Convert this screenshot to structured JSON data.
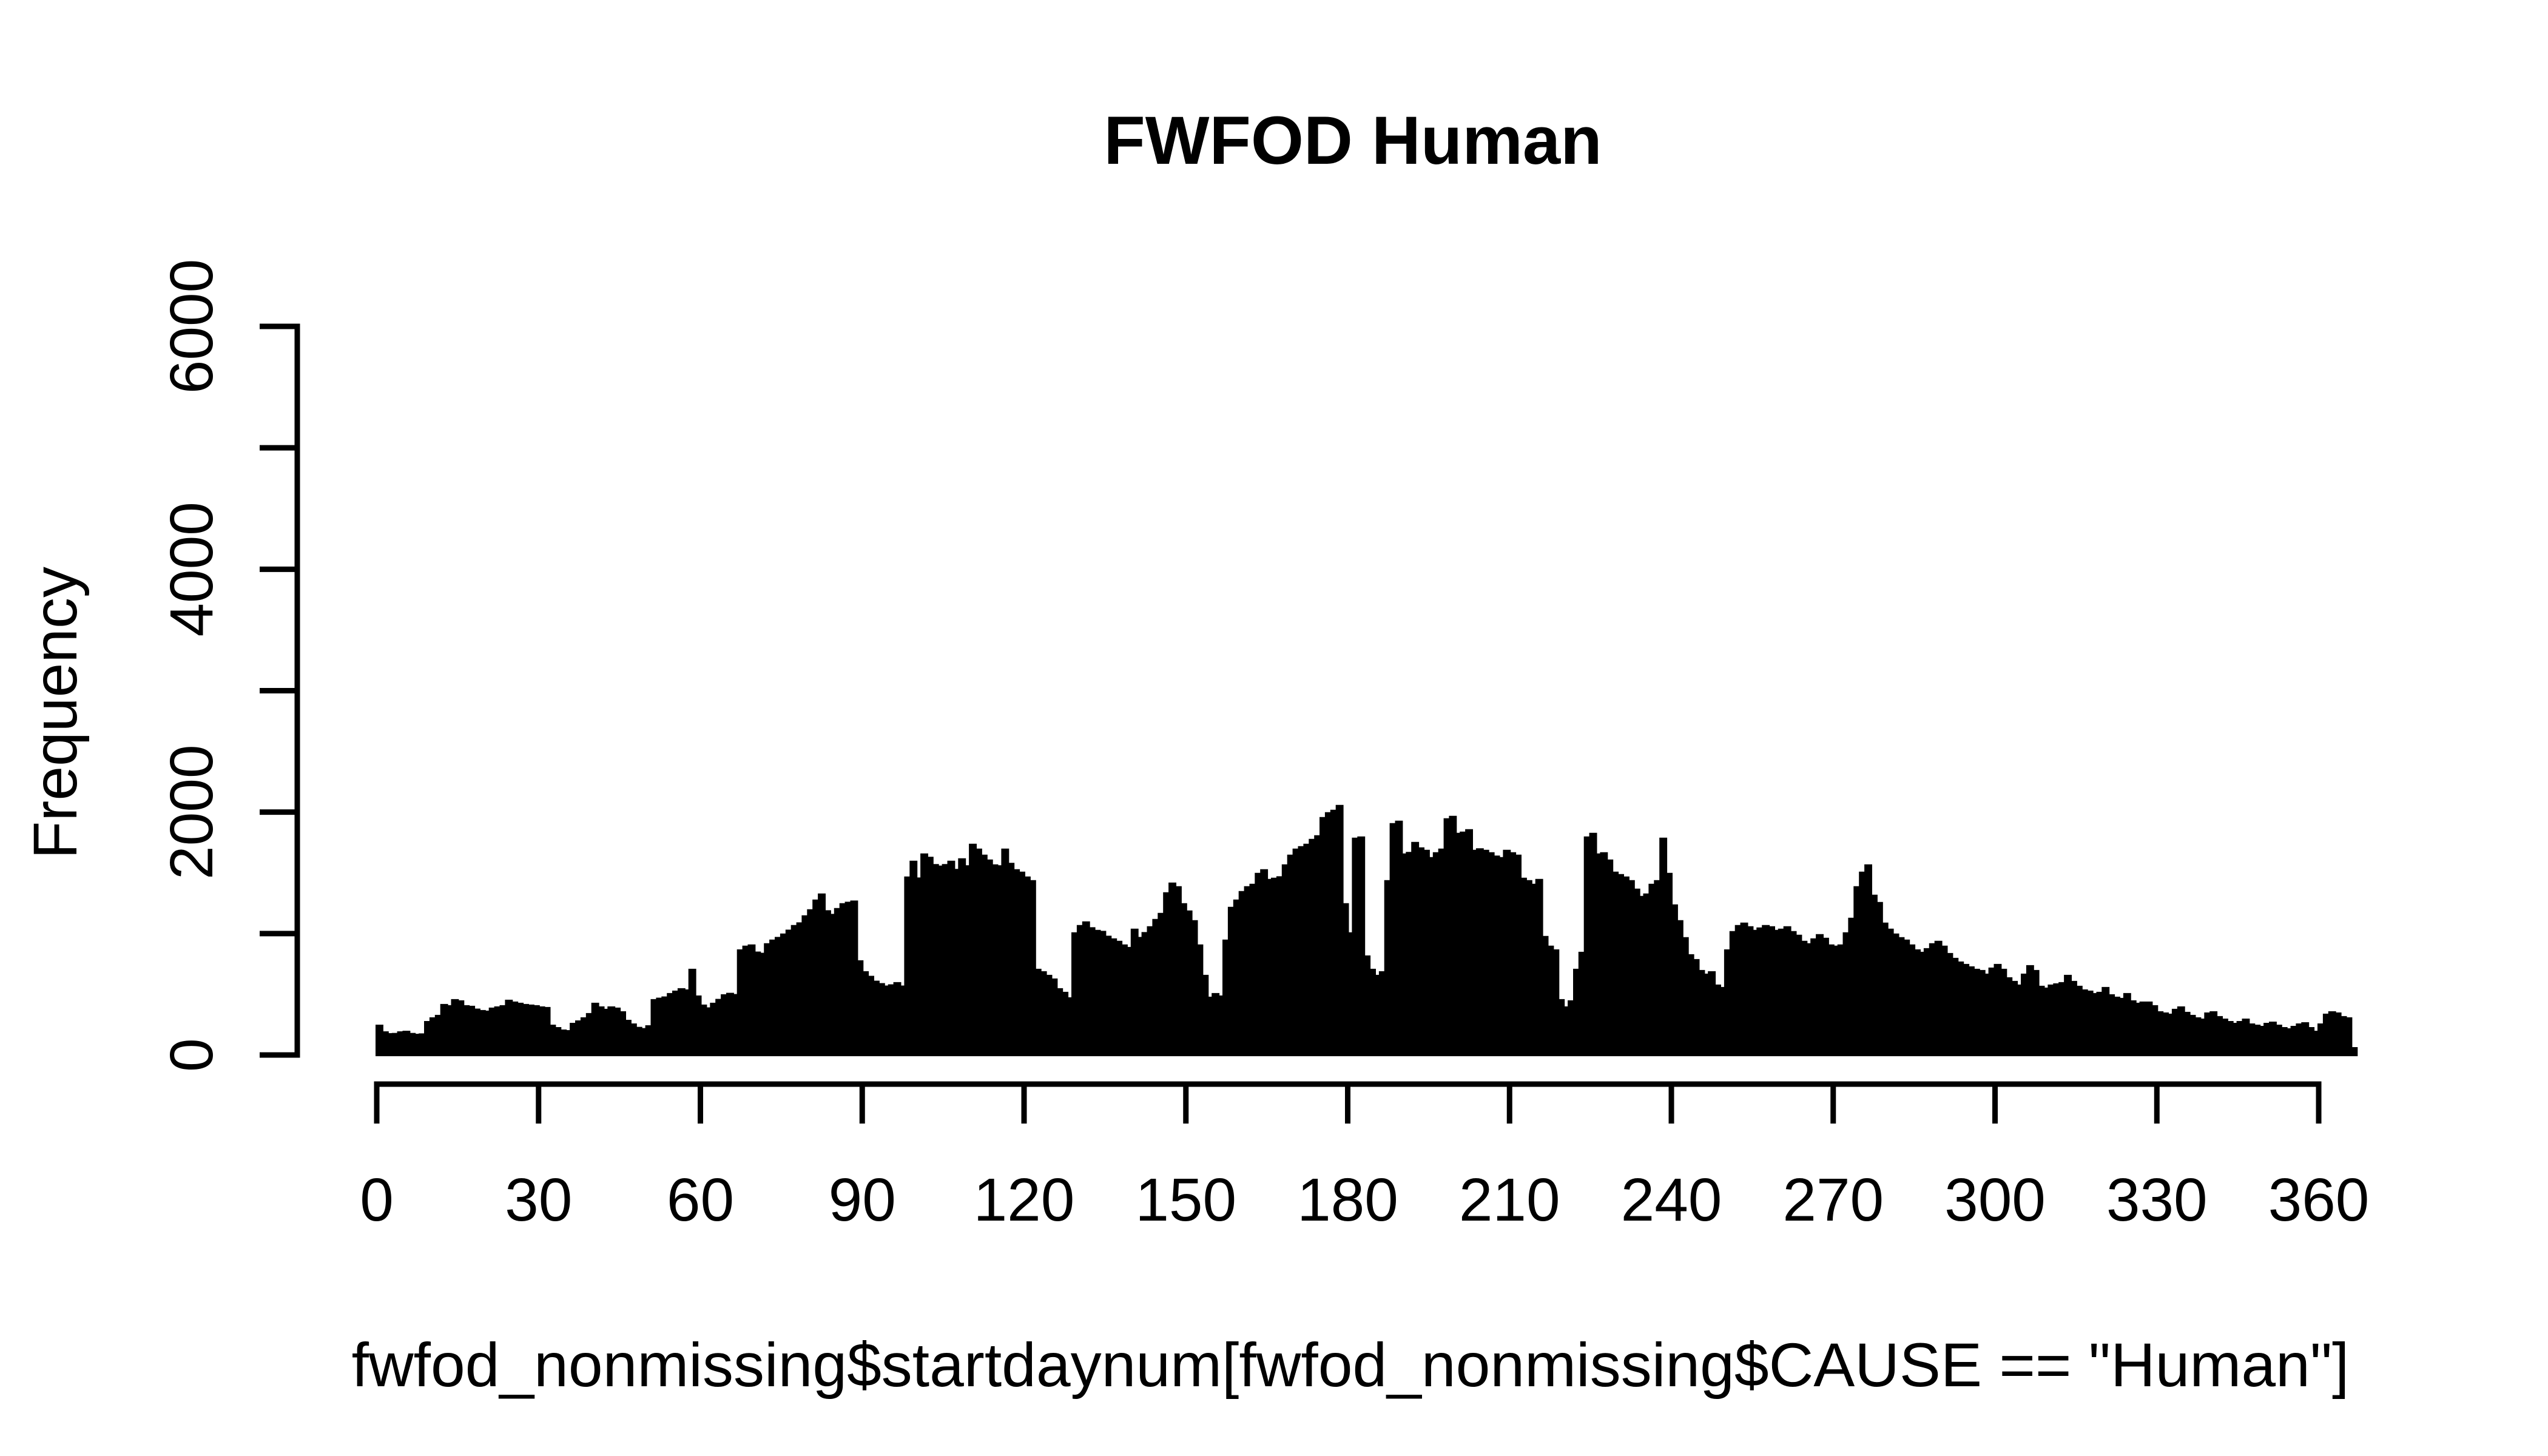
{
  "chart_data": {
    "type": "bar",
    "subtype": "histogram",
    "title": "FWFOD Human",
    "xlabel": "fwfod_nonmissing$startdaynum[fwfod_nonmissing$CAUSE == \"Human\"]",
    "ylabel": "Frequency",
    "xlim": [
      0,
      367
    ],
    "ylim": [
      0,
      6000
    ],
    "x_ticks": [
      0,
      30,
      60,
      90,
      120,
      150,
      180,
      210,
      240,
      270,
      300,
      330,
      360
    ],
    "y_ticks_minor_step": 1000,
    "y_ticks_labeled": [
      0,
      2000,
      4000,
      6000
    ],
    "grid": false,
    "legend": null,
    "bin_width": 1,
    "x_start": 0,
    "bar_color": "#000000",
    "background_color": "#ffffff",
    "values": [
      240,
      185,
      170,
      172,
      185,
      190,
      172,
      165,
      168,
      270,
      300,
      320,
      410,
      400,
      450,
      440,
      400,
      395,
      372,
      360,
      355,
      380,
      390,
      400,
      445,
      430,
      420,
      410,
      405,
      400,
      390,
      385,
      240,
      220,
      200,
      195,
      255,
      275,
      300,
      335,
      420,
      390,
      370,
      390,
      380,
      350,
      280,
      250,
      222,
      212,
      235,
      450,
      462,
      472,
      500,
      520,
      540,
      530,
      700,
      480,
      405,
      382,
      420,
      452,
      490,
      502,
      492,
      860,
      890,
      900,
      842,
      832,
      910,
      940,
      962,
      990,
      1022,
      1060,
      1082,
      1140,
      1190,
      1270,
      1320,
      1182,
      1152,
      1200,
      1240,
      1252,
      1262,
      770,
      680,
      642,
      602,
      582,
      562,
      572,
      590,
      562,
      1460,
      1590,
      1452,
      1650,
      1622,
      1562,
      1550,
      1562,
      1590,
      1522,
      1610,
      1552,
      1730,
      1690,
      1640,
      1600,
      1560,
      1552,
      1690,
      1572,
      1520,
      1500,
      1460,
      1430,
      700,
      680,
      650,
      620,
      540,
      510,
      465,
      1000,
      1060,
      1090,
      1042,
      1020,
      1012,
      972,
      950,
      930,
      900,
      880,
      1030,
      962,
      1002,
      1050,
      1110,
      1160,
      1330,
      1410,
      1380,
      1240,
      1180,
      1100,
      900,
      650,
      470,
      500,
      480,
      940,
      1210,
      1270,
      1340,
      1380,
      1400,
      1490,
      1520,
      1440,
      1450,
      1462,
      1560,
      1640,
      1690,
      1710,
      1730,
      1770,
      1800,
      1950,
      1990,
      2010,
      2050,
      1240,
      1000,
      1780,
      1790,
      810,
      700,
      650,
      680,
      1430,
      1900,
      1920,
      1650,
      1662,
      1745,
      1700,
      1680,
      1620,
      1660,
      1690,
      1940,
      1960,
      1820,
      1830,
      1850,
      1680,
      1692,
      1680,
      1660,
      1632,
      1620,
      1680,
      1660,
      1640,
      1450,
      1430,
      1400,
      1440,
      970,
      890,
      860,
      450,
      390,
      440,
      700,
      840,
      1790,
      1820,
      1650,
      1660,
      1600,
      1500,
      1480,
      1460,
      1430,
      1360,
      1300,
      1320,
      1400,
      1430,
      1780,
      1490,
      1230,
      1100,
      960,
      820,
      780,
      690,
      660,
      680,
      570,
      550,
      860,
      1010,
      1060,
      1080,
      1050,
      1020,
      1040,
      1060,
      1050,
      1020,
      1030,
      1050,
      1010,
      980,
      930,
      910,
      950,
      985,
      955,
      900,
      890,
      900,
      1000,
      1120,
      1380,
      1500,
      1560,
      1310,
      1250,
      1080,
      1030,
      990,
      960,
      940,
      900,
      860,
      840,
      870,
      910,
      930,
      890,
      830,
      790,
      760,
      740,
      720,
      700,
      690,
      660,
      710,
      740,
      700,
      630,
      600,
      570,
      660,
      730,
      690,
      560,
      545,
      570,
      580,
      590,
      650,
      600,
      560,
      530,
      520,
      500,
      510,
      550,
      490,
      470,
      460,
      500,
      440,
      420,
      430,
      430,
      400,
      350,
      340,
      330,
      370,
      390,
      345,
      320,
      300,
      290,
      340,
      350,
      310,
      290,
      270,
      255,
      270,
      290,
      250,
      240,
      230,
      255,
      265,
      240,
      220,
      210,
      230,
      250,
      260,
      220,
      190,
      250,
      330,
      350,
      340,
      310,
      300,
      55
    ]
  }
}
